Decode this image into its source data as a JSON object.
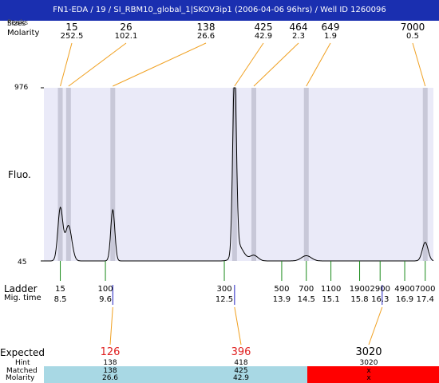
{
  "title": "FN1-EDA / 19 / SI_RBM10_global_1|SKOV3ip1 (2006-04-06 96hrs) / Well ID 1260096",
  "header_labels": {
    "peaks": "Peaks",
    "sizes": "Sizes",
    "molarity": "Molarity"
  },
  "y_axis": {
    "label": "Fluo.",
    "max_label": "976",
    "min_label": "45"
  },
  "ladder_axis": {
    "ladder_label": "Ladder",
    "migtime_label": "Mig. time"
  },
  "colors": {
    "title_bg": "#1a2fb0",
    "plot_bg": "#eaeaf8",
    "marker_band": "#c8c8d8",
    "orange": "#f0a020",
    "green": "#1a8a1a",
    "blue": "#2020c0",
    "red": "#e02020",
    "matched_bg": "#a8d8e4",
    "unmatched_bg": "#ff0000"
  },
  "chart_data": {
    "type": "line",
    "ylim": [
      45,
      976
    ],
    "time_range": [
      8.1,
      17.6
    ],
    "curve": {
      "baseline": 45,
      "peaks": [
        {
          "t": 8.5,
          "height": 280,
          "width": 0.06
        },
        {
          "t": 8.7,
          "height": 190,
          "width": 0.08
        },
        {
          "t": 12.75,
          "height": 976,
          "width": 0.045
        },
        {
          "t": 12.85,
          "height": 80,
          "width": 0.12
        },
        {
          "t": 9.78,
          "height": 275,
          "width": 0.05
        },
        {
          "t": 13.22,
          "height": 30,
          "width": 0.1
        },
        {
          "t": 14.5,
          "height": 28,
          "width": 0.12
        },
        {
          "t": 17.4,
          "height": 100,
          "width": 0.07
        }
      ]
    },
    "peaks": [
      {
        "size": "15",
        "molarity": "252.5",
        "t": 8.5
      },
      {
        "size": "26",
        "molarity": "102.1",
        "t": 8.7
      },
      {
        "size": "138",
        "molarity": "26.6",
        "t": 9.78
      },
      {
        "size": "425",
        "molarity": "42.9",
        "t": 12.75
      },
      {
        "size": "464",
        "molarity": "2.3",
        "t": 13.22
      },
      {
        "size": "649",
        "molarity": "1.9",
        "t": 14.5
      },
      {
        "size": "7000",
        "molarity": "0.5",
        "t": 17.4
      }
    ],
    "ladder": [
      {
        "size": "15",
        "time": "8.5",
        "t": 8.5
      },
      {
        "size": "100",
        "time": "9.6",
        "t": 9.6
      },
      {
        "size": "300",
        "time": "12.5",
        "t": 12.5
      },
      {
        "size": "500",
        "time": "13.9",
        "t": 13.9
      },
      {
        "size": "700",
        "time": "14.5",
        "t": 14.5
      },
      {
        "size": "1100",
        "time": "15.1",
        "t": 15.1
      },
      {
        "size": "1900",
        "time": "15.8",
        "t": 15.8
      },
      {
        "size": "2900",
        "time": "16.3",
        "t": 16.3
      },
      {
        "size": "4900",
        "time": "16.9",
        "t": 16.9
      },
      {
        "size": "7000",
        "time": "17.4",
        "t": 17.4
      }
    ],
    "expected": [
      {
        "value": "126",
        "hint": "138",
        "matched": "138",
        "molarity": "26.6",
        "t": 9.78,
        "color": "red",
        "status": "matched"
      },
      {
        "value": "396",
        "hint": "418",
        "matched": "425",
        "molarity": "42.9",
        "t": 12.75,
        "color": "red",
        "status": "matched"
      },
      {
        "value": "3020",
        "hint": "3020",
        "matched": "x",
        "molarity": "x",
        "t": 16.35,
        "color": "black",
        "status": "unmatched"
      }
    ]
  },
  "bottom_table": {
    "expected_label": "Expected",
    "hint_label": "Hint",
    "matched_label": "Matched",
    "molarity_label": "Molarity"
  }
}
